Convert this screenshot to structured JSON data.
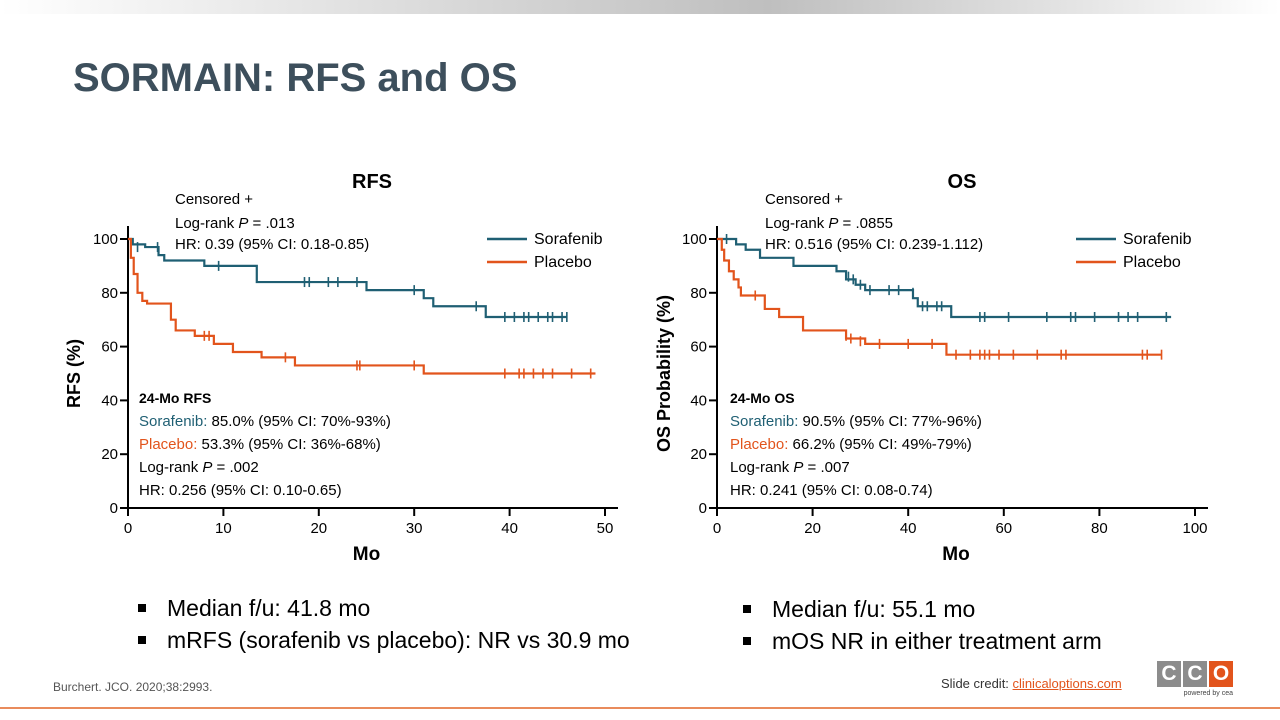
{
  "slide": {
    "title": "SORMAIN: RFS and OS",
    "citation": "Burchert. JCO. 2020;38:2993.",
    "credit_label": "Slide credit: ",
    "credit_link": "clinicaloptions.com",
    "logo_letters": [
      "C",
      "C",
      "O"
    ],
    "logo_tagline": "powered by cea"
  },
  "colors": {
    "sorafenib": "#1f5f73",
    "placebo": "#e2541c",
    "title": "#3d4f5c",
    "logo_gray": "#8c8c8c",
    "logo_orange": "#e2541c"
  },
  "left_bullets": [
    "Median f/u: 41.8 mo",
    "mRFS (sorafenib vs placebo): NR vs 30.9 mo"
  ],
  "right_bullets": [
    "Median f/u: 55.1 mo",
    "mOS NR in either treatment arm"
  ],
  "chart_data": [
    {
      "type": "line",
      "title": "RFS",
      "xlabel": "Mo",
      "ylabel": "RFS (%)",
      "xlim": [
        0,
        50
      ],
      "ylim": [
        0,
        100
      ],
      "xticks": [
        0,
        10,
        20,
        30,
        40,
        50
      ],
      "yticks": [
        0,
        20,
        40,
        60,
        80,
        100
      ],
      "legend": "top-right",
      "annotation_top": {
        "line1": "Censored +",
        "line2_prefix": "Log-rank ",
        "line2_p": "P",
        "line2_suffix": " = .013",
        "line3": "HR: 0.39 (95% CI: 0.18-0.85)"
      },
      "annotation_bottom": {
        "heading": "24-Mo RFS",
        "sorafenib_label": "Sorafenib:",
        "sorafenib_text": " 85.0% (95% CI: 70%-93%)",
        "placebo_label": "Placebo:",
        "placebo_text": " 53.3% (95% CI: 36%-68%)",
        "logrank_prefix": "Log-rank ",
        "logrank_p": "P",
        "logrank_suffix": " = .002",
        "hr": "HR: 0.256 (95% CI: 0.10-0.65)"
      },
      "series": [
        {
          "name": "Sorafenib",
          "color_key": "sorafenib",
          "steps": [
            [
              0,
              100
            ],
            [
              0.5,
              98
            ],
            [
              1.8,
              97
            ],
            [
              3.2,
              94
            ],
            [
              3.8,
              92
            ],
            [
              8,
              90
            ],
            [
              13.5,
              84
            ],
            [
              25,
              81
            ],
            [
              31,
              78
            ],
            [
              32,
              75
            ],
            [
              37.5,
              71
            ],
            [
              46,
              71
            ]
          ],
          "censored": [
            [
              1,
              97
            ],
            [
              3.1,
              97
            ],
            [
              9.5,
              90
            ],
            [
              18.5,
              84
            ],
            [
              19,
              84
            ],
            [
              21,
              84
            ],
            [
              22,
              84
            ],
            [
              24,
              84
            ],
            [
              30,
              81
            ],
            [
              36.5,
              75
            ],
            [
              39.5,
              71
            ],
            [
              40.5,
              71
            ],
            [
              41.5,
              71
            ],
            [
              42,
              71
            ],
            [
              43,
              71
            ],
            [
              44,
              71
            ],
            [
              44.5,
              71
            ],
            [
              45.5,
              71
            ],
            [
              46,
              71
            ]
          ]
        },
        {
          "name": "Placebo",
          "color_key": "placebo",
          "steps": [
            [
              0,
              100
            ],
            [
              0.3,
              93
            ],
            [
              0.6,
              87
            ],
            [
              1,
              80
            ],
            [
              1.5,
              77
            ],
            [
              2,
              76
            ],
            [
              4.5,
              70
            ],
            [
              5,
              66
            ],
            [
              7,
              64
            ],
            [
              9,
              61
            ],
            [
              11,
              58
            ],
            [
              14,
              56
            ],
            [
              17.5,
              53
            ],
            [
              31,
              50
            ],
            [
              49,
              50
            ]
          ],
          "censored": [
            [
              8,
              64
            ],
            [
              8.5,
              64
            ],
            [
              16.5,
              56
            ],
            [
              24,
              53
            ],
            [
              24.3,
              53
            ],
            [
              30,
              53
            ],
            [
              39.5,
              50
            ],
            [
              41,
              50
            ],
            [
              41.5,
              50
            ],
            [
              42.5,
              50
            ],
            [
              43.5,
              50
            ],
            [
              44.5,
              50
            ],
            [
              46.5,
              50
            ],
            [
              48.5,
              50
            ]
          ]
        }
      ]
    },
    {
      "type": "line",
      "title": "OS",
      "xlabel": "Mo",
      "ylabel": "OS Probability (%)",
      "xlim": [
        0,
        100
      ],
      "ylim": [
        0,
        100
      ],
      "xticks": [
        0,
        20,
        40,
        60,
        80,
        100
      ],
      "yticks": [
        0,
        20,
        40,
        60,
        80,
        100
      ],
      "legend": "top-right",
      "annotation_top": {
        "line1": "Censored +",
        "line2_prefix": "Log-rank ",
        "line2_p": "P",
        "line2_suffix": " = .0855",
        "line3": "HR: 0.516 (95% CI: 0.239-1.112)"
      },
      "annotation_bottom": {
        "heading": "24-Mo OS",
        "sorafenib_label": "Sorafenib:",
        "sorafenib_text": " 90.5% (95% CI: 77%-96%)",
        "placebo_label": "Placebo:",
        "placebo_text": " 66.2% (95% CI: 49%-79%)",
        "logrank_prefix": "Log-rank ",
        "logrank_p": "P",
        "logrank_suffix": " = .007",
        "hr": "HR: 0.241 (95% CI: 0.08-0.74)"
      },
      "series": [
        {
          "name": "Sorafenib",
          "color_key": "sorafenib",
          "steps": [
            [
              0,
              100
            ],
            [
              4,
              98
            ],
            [
              6,
              96
            ],
            [
              9,
              93
            ],
            [
              16,
              90
            ],
            [
              25,
              88
            ],
            [
              27,
              85
            ],
            [
              29,
              83
            ],
            [
              31,
              81
            ],
            [
              41,
              78
            ],
            [
              42,
              75
            ],
            [
              49,
              71
            ],
            [
              95,
              71
            ]
          ],
          "censored": [
            [
              2,
              100
            ],
            [
              27.5,
              86
            ],
            [
              28.5,
              85
            ],
            [
              30,
              83
            ],
            [
              32,
              81
            ],
            [
              36,
              81
            ],
            [
              38,
              81
            ],
            [
              41,
              80
            ],
            [
              43,
              75
            ],
            [
              44,
              75
            ],
            [
              46,
              75
            ],
            [
              47,
              75
            ],
            [
              55,
              71
            ],
            [
              56,
              71
            ],
            [
              61,
              71
            ],
            [
              69,
              71
            ],
            [
              74,
              71
            ],
            [
              75,
              71
            ],
            [
              79,
              71
            ],
            [
              84,
              71
            ],
            [
              86,
              71
            ],
            [
              88,
              71
            ],
            [
              94,
              71
            ]
          ]
        },
        {
          "name": "Placebo",
          "color_key": "placebo",
          "steps": [
            [
              0,
              100
            ],
            [
              1,
              96
            ],
            [
              1.5,
              92
            ],
            [
              2.5,
              88
            ],
            [
              3.5,
              85
            ],
            [
              4.5,
              82
            ],
            [
              5,
              79
            ],
            [
              10,
              74
            ],
            [
              13,
              71
            ],
            [
              18,
              66
            ],
            [
              27,
              63
            ],
            [
              31,
              61
            ],
            [
              48,
              57
            ],
            [
              93,
              57
            ]
          ],
          "censored": [
            [
              8,
              79
            ],
            [
              27,
              64
            ],
            [
              28,
              63
            ],
            [
              30,
              62
            ],
            [
              34,
              61
            ],
            [
              40,
              61
            ],
            [
              45,
              61
            ],
            [
              50,
              57
            ],
            [
              53,
              57
            ],
            [
              55,
              57
            ],
            [
              56,
              57
            ],
            [
              57,
              57
            ],
            [
              59,
              57
            ],
            [
              62,
              57
            ],
            [
              67,
              57
            ],
            [
              72,
              57
            ],
            [
              73,
              57
            ],
            [
              89,
              57
            ],
            [
              90,
              57
            ],
            [
              93,
              57
            ]
          ]
        }
      ]
    }
  ]
}
